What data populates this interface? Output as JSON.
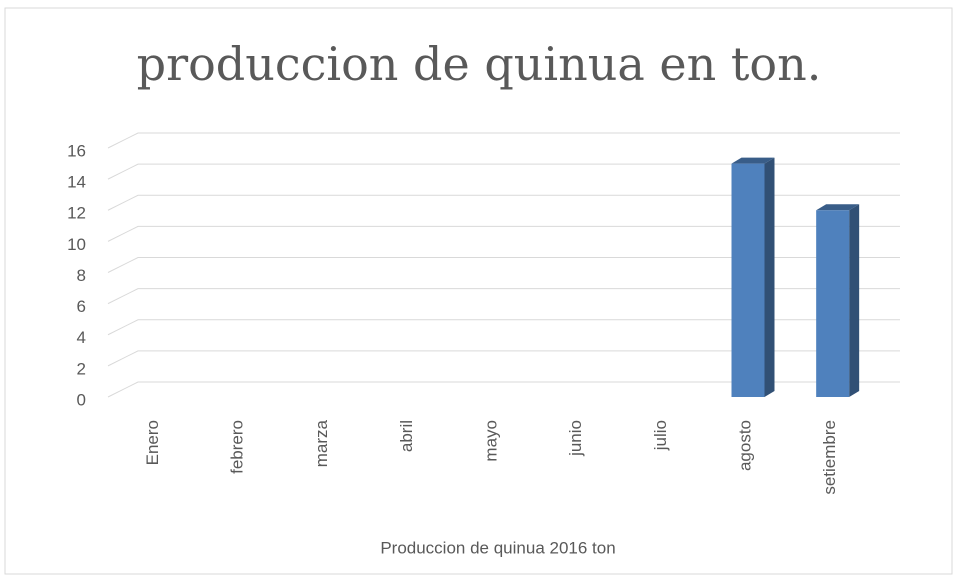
{
  "chart_data": {
    "type": "bar3d",
    "title": "produccion de quinua en ton.",
    "categories": [
      "Enero",
      "febrero",
      "marza",
      "abril",
      "mayo",
      "junio",
      "julio",
      "agosto",
      "setiembre"
    ],
    "values": [
      0,
      0,
      0,
      0,
      0,
      0,
      0,
      15,
      12
    ],
    "color": "#4f81bd",
    "x_label": "Produccion de quinua 2016 ton",
    "ylim": [
      0,
      16
    ],
    "yticks": [
      0,
      2,
      4,
      6,
      8,
      10,
      12,
      14,
      16
    ],
    "grid": true
  }
}
